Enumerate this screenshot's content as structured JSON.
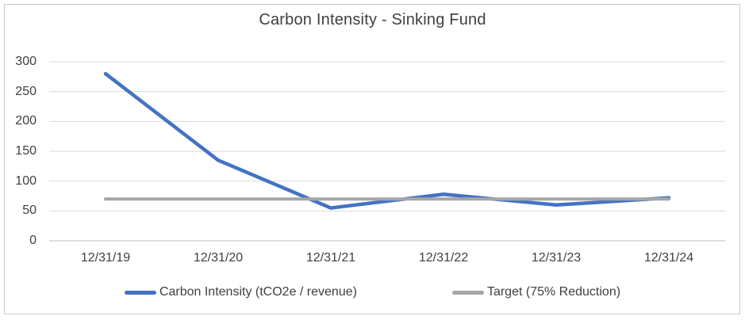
{
  "chart_data": {
    "type": "line",
    "title": "Carbon Intensity - Sinking Fund",
    "categories": [
      "12/31/19",
      "12/31/20",
      "12/31/21",
      "12/31/22",
      "12/31/23",
      "12/31/24"
    ],
    "series": [
      {
        "name": "Carbon Intensity (tCO2e / revenue)",
        "color": "#4472C4",
        "stroke_width": 4.5,
        "values": [
          280,
          135,
          55,
          78,
          60,
          72
        ]
      },
      {
        "name": "Target (75% Reduction)",
        "color": "#A6A6A6",
        "stroke_width": 4,
        "values": [
          70,
          70,
          70,
          70,
          70,
          70
        ]
      }
    ],
    "xlabel": "",
    "ylabel": "",
    "ylim": [
      0,
      300
    ],
    "y_ticks": [
      0,
      50,
      100,
      150,
      200,
      250,
      300
    ],
    "grid": true,
    "legend_position": "bottom"
  },
  "colors": {
    "gridline": "#D9D9D9",
    "axis_line": "#BFBFBF",
    "text": "#404040",
    "border": "#C9C9C9"
  }
}
